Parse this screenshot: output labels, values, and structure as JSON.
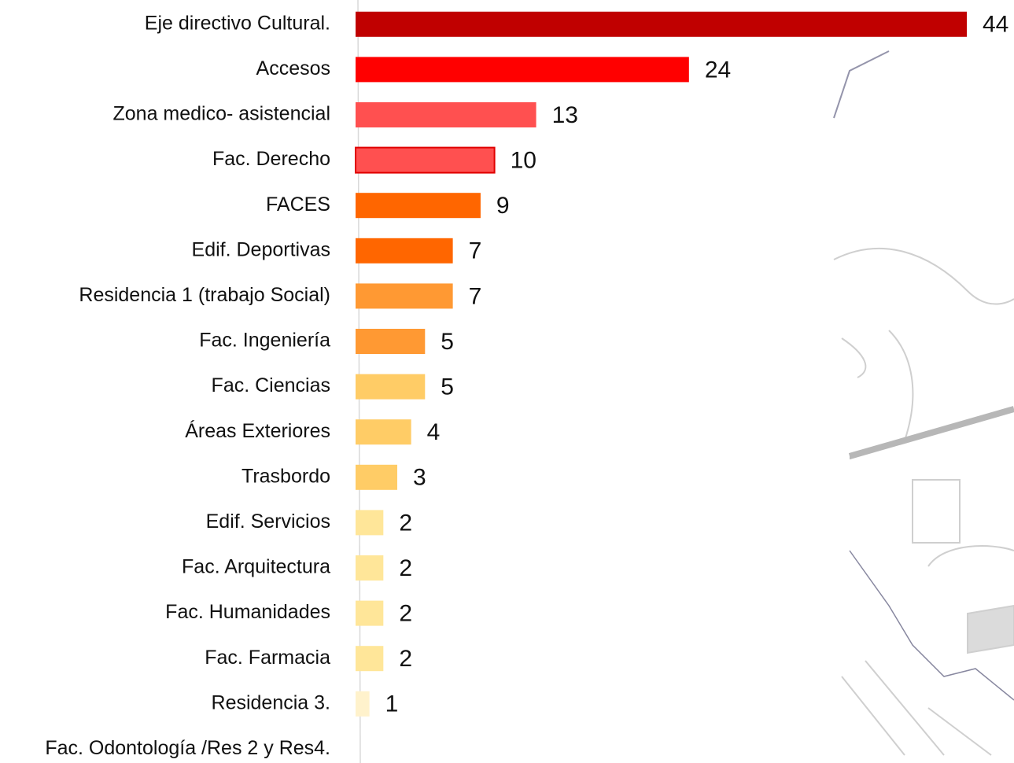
{
  "chart_data": {
    "type": "bar",
    "orientation": "horizontal",
    "categories": [
      "Eje directivo Cultural.",
      "Accesos",
      "Zona medico- asistencial",
      "Fac. Derecho",
      "FACES",
      "Edif. Deportivas",
      "Residencia  1 (trabajo Social)",
      "Fac. Ingeniería",
      "Fac. Ciencias",
      "Áreas Exteriores",
      "Trasbordo",
      "Edif. Servicios",
      "Fac. Arquitectura",
      "Fac. Humanidades",
      "Fac. Farmacia",
      "Residencia 3.",
      "Fac. Odontología /Res 2 y Res4."
    ],
    "values": [
      44,
      24,
      13,
      10,
      9,
      7,
      7,
      5,
      5,
      4,
      3,
      2,
      2,
      2,
      2,
      1,
      null
    ],
    "colors": [
      "#c00000",
      "#ff0000",
      "#ff5050",
      "#ff5050",
      "#ff6600",
      "#ff6600",
      "#ff9933",
      "#ff9933",
      "#ffcc66",
      "#ffcc66",
      "#ffcc66",
      "#ffe699",
      "#ffe699",
      "#ffe699",
      "#ffe699",
      "#fff2cc",
      null
    ],
    "xlim": [
      0,
      44
    ]
  }
}
